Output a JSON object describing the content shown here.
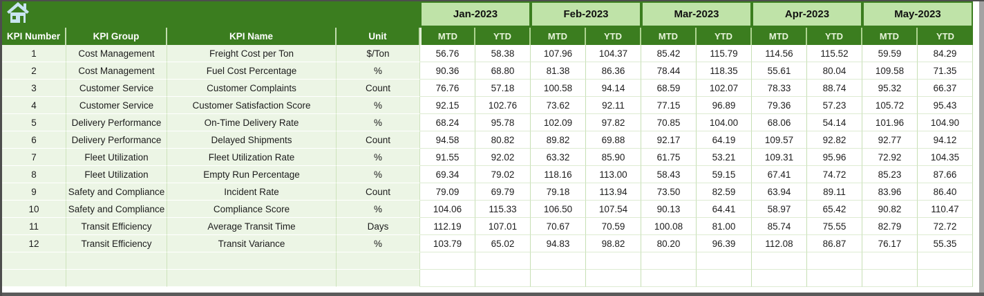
{
  "app": {
    "home_icon": "home",
    "colors": {
      "header_green": "#3b7d1f",
      "month_band_green": "#bfe3a8",
      "row_pale_green": "#ecf5e5",
      "icon_blue": "#c9e4f1",
      "frame_gray": "#5a5a5a"
    }
  },
  "columns": {
    "kpi_number": "KPI Number",
    "kpi_group": "KPI Group",
    "kpi_name": "KPI Name",
    "unit": "Unit"
  },
  "months": [
    "Jan-2023",
    "Feb-2023",
    "Mar-2023",
    "Apr-2023",
    "May-2023"
  ],
  "sub_headers": {
    "mtd": "MTD",
    "ytd": "YTD"
  },
  "rows": [
    {
      "number": "1",
      "group": "Cost Management",
      "name": "Freight Cost per Ton",
      "unit": "$/Ton",
      "values": [
        "56.76",
        "58.38",
        "107.96",
        "104.37",
        "85.42",
        "115.79",
        "114.56",
        "115.52",
        "59.59",
        "84.29"
      ]
    },
    {
      "number": "2",
      "group": "Cost Management",
      "name": "Fuel Cost Percentage",
      "unit": "%",
      "values": [
        "90.36",
        "68.80",
        "81.38",
        "86.36",
        "78.44",
        "118.35",
        "55.61",
        "80.04",
        "109.58",
        "71.35"
      ]
    },
    {
      "number": "3",
      "group": "Customer Service",
      "name": "Customer Complaints",
      "unit": "Count",
      "values": [
        "76.76",
        "57.18",
        "100.58",
        "94.14",
        "68.59",
        "102.07",
        "78.33",
        "88.74",
        "95.32",
        "66.37"
      ]
    },
    {
      "number": "4",
      "group": "Customer Service",
      "name": "Customer Satisfaction Score",
      "unit": "%",
      "values": [
        "92.15",
        "102.76",
        "73.62",
        "92.11",
        "77.15",
        "96.89",
        "79.36",
        "57.23",
        "105.72",
        "95.43"
      ]
    },
    {
      "number": "5",
      "group": "Delivery Performance",
      "name": "On-Time Delivery Rate",
      "unit": "%",
      "values": [
        "68.24",
        "95.78",
        "102.09",
        "97.82",
        "70.85",
        "104.00",
        "68.06",
        "54.14",
        "101.96",
        "104.90"
      ]
    },
    {
      "number": "6",
      "group": "Delivery Performance",
      "name": "Delayed Shipments",
      "unit": "Count",
      "values": [
        "94.58",
        "80.82",
        "89.82",
        "69.88",
        "92.17",
        "64.19",
        "109.57",
        "92.82",
        "92.77",
        "94.12"
      ]
    },
    {
      "number": "7",
      "group": "Fleet Utilization",
      "name": "Fleet Utilization Rate",
      "unit": "%",
      "values": [
        "91.55",
        "92.02",
        "63.32",
        "85.90",
        "61.75",
        "53.21",
        "109.31",
        "95.96",
        "72.92",
        "104.35"
      ]
    },
    {
      "number": "8",
      "group": "Fleet Utilization",
      "name": "Empty Run Percentage",
      "unit": "%",
      "values": [
        "69.34",
        "79.02",
        "118.16",
        "113.00",
        "58.43",
        "59.15",
        "67.41",
        "74.72",
        "85.23",
        "87.66"
      ]
    },
    {
      "number": "9",
      "group": "Safety and Compliance",
      "name": "Incident Rate",
      "unit": "Count",
      "values": [
        "79.09",
        "69.79",
        "79.18",
        "113.94",
        "73.50",
        "82.59",
        "63.94",
        "89.11",
        "83.96",
        "86.40"
      ]
    },
    {
      "number": "10",
      "group": "Safety and Compliance",
      "name": "Compliance Score",
      "unit": "%",
      "values": [
        "104.06",
        "115.33",
        "106.50",
        "107.54",
        "90.13",
        "64.41",
        "58.97",
        "65.42",
        "90.82",
        "110.47"
      ]
    },
    {
      "number": "11",
      "group": "Transit Efficiency",
      "name": "Average Transit Time",
      "unit": "Days",
      "values": [
        "112.19",
        "107.01",
        "70.67",
        "70.59",
        "100.08",
        "81.00",
        "85.74",
        "75.55",
        "82.79",
        "72.72"
      ]
    },
    {
      "number": "12",
      "group": "Transit Efficiency",
      "name": "Transit Variance",
      "unit": "%",
      "values": [
        "103.79",
        "65.02",
        "94.83",
        "98.82",
        "80.20",
        "96.39",
        "112.08",
        "86.87",
        "76.17",
        "55.35"
      ]
    }
  ],
  "empty_row_count": 2
}
